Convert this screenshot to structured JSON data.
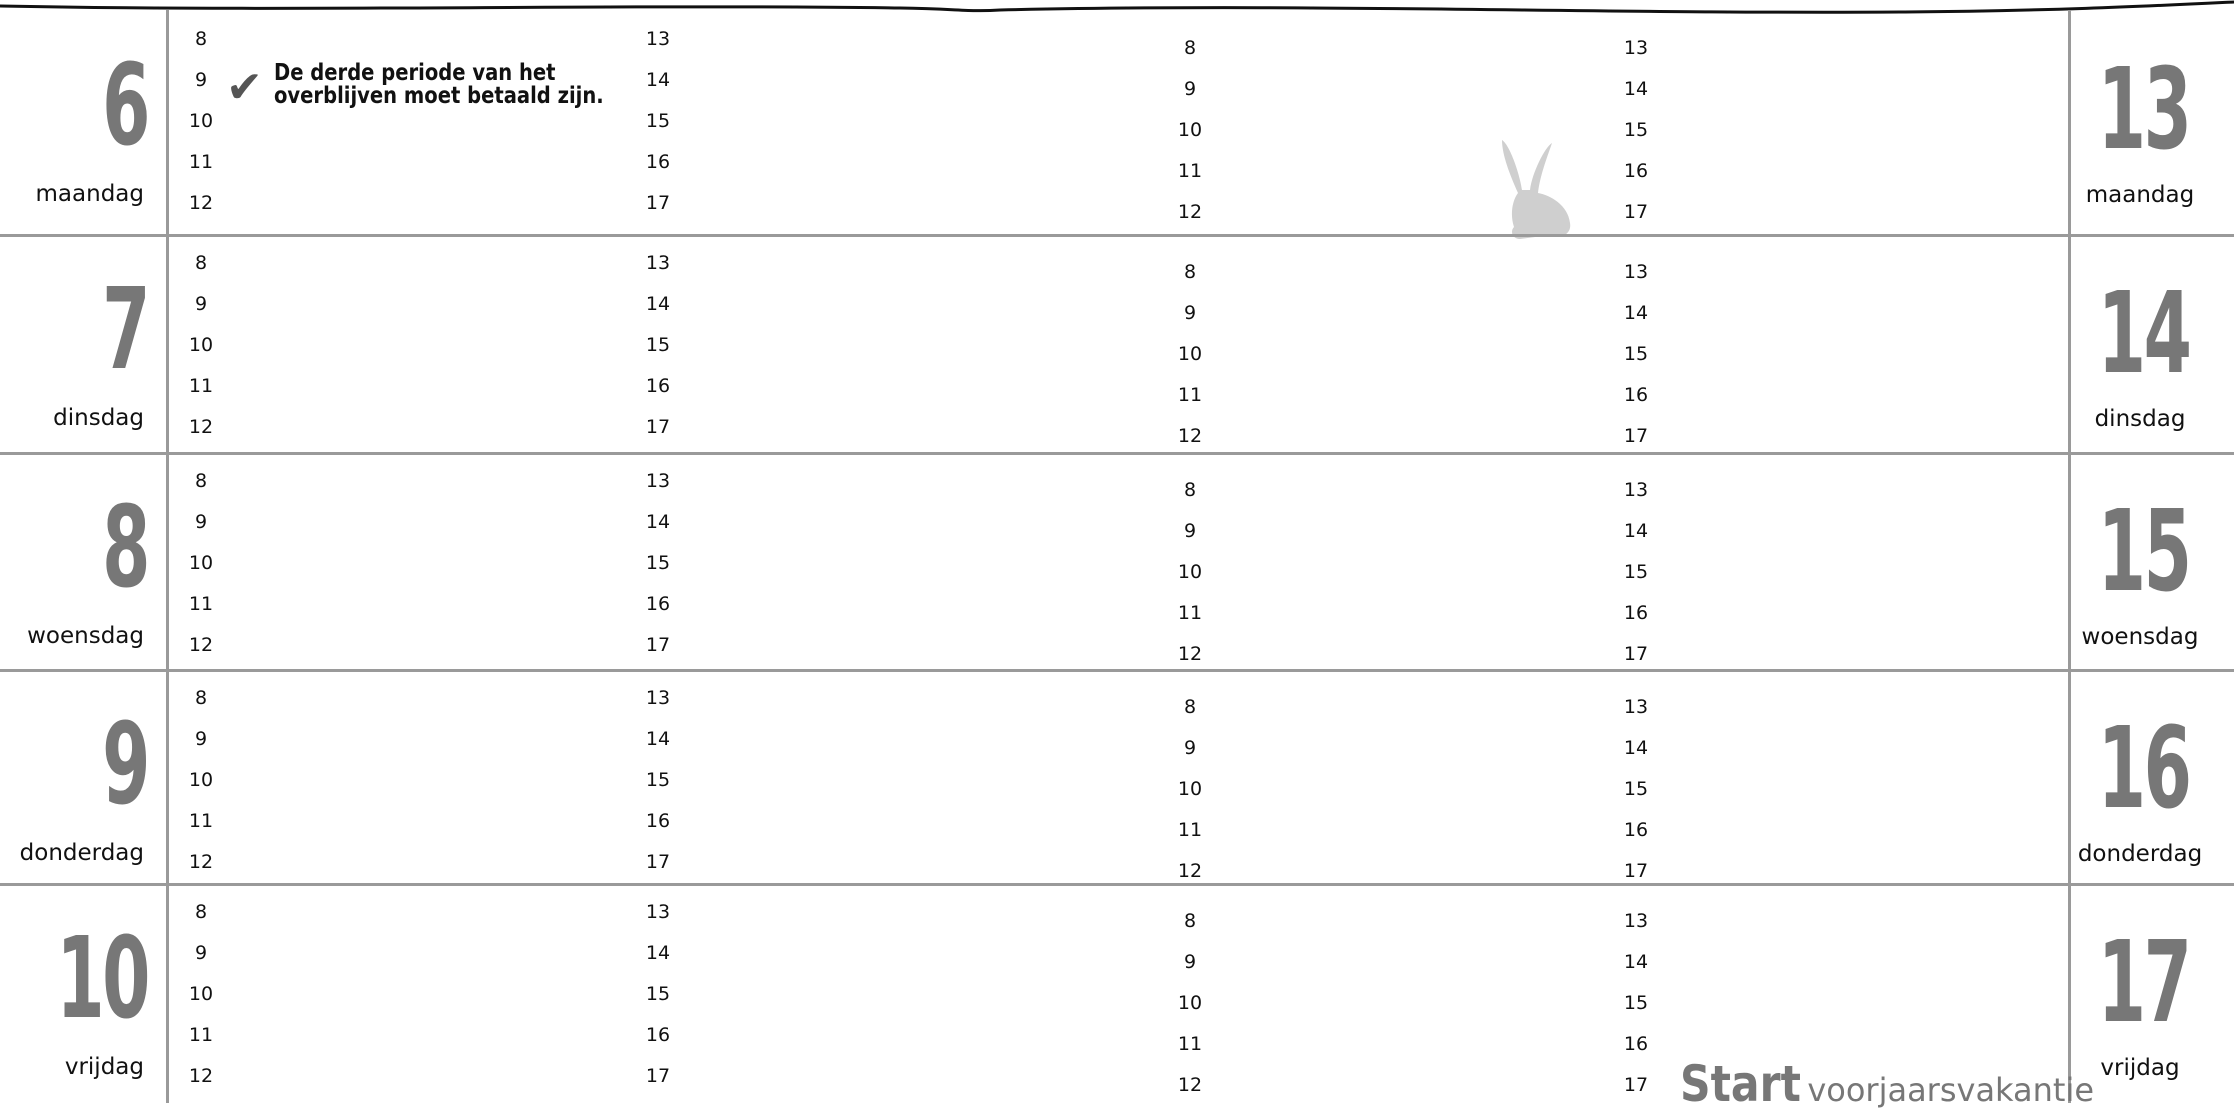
{
  "left_days": [
    {
      "number": "6",
      "name": "maandag"
    },
    {
      "number": "7",
      "name": "dinsdag"
    },
    {
      "number": "8",
      "name": "woensdag"
    },
    {
      "number": "9",
      "name": "donderdag"
    },
    {
      "number": "10",
      "name": "vrijdag"
    }
  ],
  "right_days": [
    {
      "number": "13",
      "name": "maandag"
    },
    {
      "number": "14",
      "name": "dinsdag"
    },
    {
      "number": "15",
      "name": "woensdag"
    },
    {
      "number": "16",
      "name": "donderdag"
    },
    {
      "number": "17",
      "name": "vrijdag"
    }
  ],
  "hours": {
    "morning": [
      "8",
      "9",
      "10",
      "11",
      "12"
    ],
    "afternoon": [
      "13",
      "14",
      "15",
      "16",
      "17"
    ]
  },
  "note": {
    "lines": [
      "De derde periode van het",
      "overblijven moet betaald zijn."
    ]
  },
  "banner": {
    "strong": "Start",
    "rest": "voorjaarsvakantie"
  }
}
